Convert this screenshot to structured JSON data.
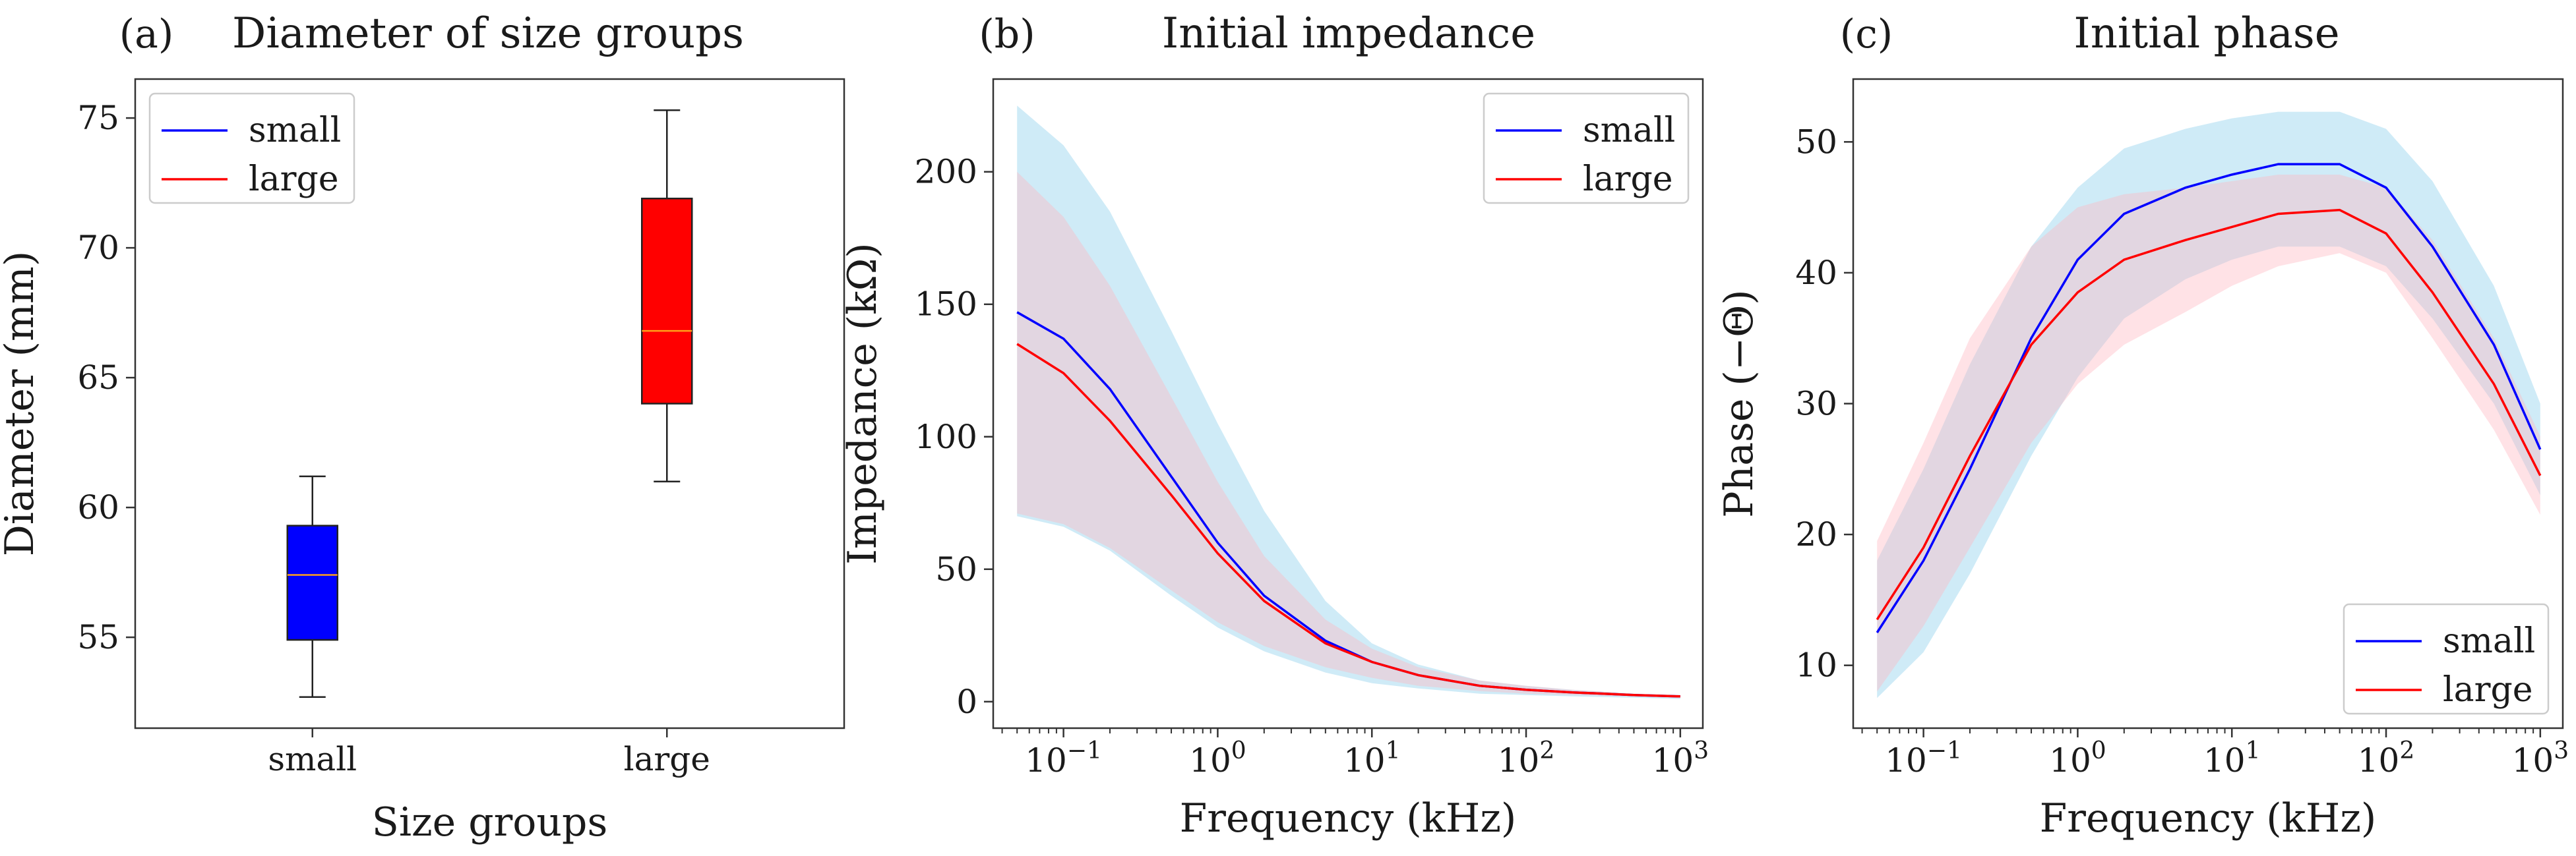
{
  "chart_data": [
    {
      "type": "box",
      "panel_label": "(a)",
      "title": "Diameter of size groups",
      "xlabel": "Size groups",
      "ylabel": "Diameter (mm)",
      "ylim": [
        51.5,
        76.5
      ],
      "yticks": [
        55,
        60,
        65,
        70,
        75
      ],
      "categories": [
        "small",
        "large"
      ],
      "boxes": [
        {
          "name": "small",
          "color": "#0000ff",
          "whisker_low": 52.7,
          "q1": 54.9,
          "median": 57.4,
          "q3": 59.3,
          "whisker_high": 61.2
        },
        {
          "name": "large",
          "color": "#ff0000",
          "whisker_low": 61.0,
          "q1": 64.0,
          "median": 66.8,
          "q3": 71.9,
          "whisker_high": 75.3
        }
      ],
      "legend": {
        "position": "top-left",
        "entries": [
          {
            "label": "small",
            "color": "#0000ff"
          },
          {
            "label": "large",
            "color": "#ff0000"
          }
        ]
      }
    },
    {
      "type": "line",
      "panel_label": "(b)",
      "title": "Initial impedance",
      "xlabel": "Frequency (kHz)",
      "ylabel": "Impedance (kΩ)",
      "xscale": "log",
      "xlim": [
        0.035,
        1400
      ],
      "ylim": [
        -10,
        235
      ],
      "yticks": [
        0,
        50,
        100,
        150,
        200
      ],
      "xticks": [
        {
          "value": 0.1,
          "base": "10",
          "exp": "−1"
        },
        {
          "value": 1,
          "base": "10",
          "exp": "0"
        },
        {
          "value": 10,
          "base": "10",
          "exp": "1"
        },
        {
          "value": 100,
          "base": "10",
          "exp": "2"
        },
        {
          "value": 1000,
          "base": "10",
          "exp": "3"
        }
      ],
      "x": [
        0.05,
        0.1,
        0.2,
        0.5,
        1,
        2,
        5,
        10,
        20,
        50,
        100,
        200,
        500,
        1000
      ],
      "series": [
        {
          "name": "small",
          "color": "#0000ff",
          "band_color": "#87ceeb",
          "values": [
            147,
            137,
            118,
            85,
            60,
            40,
            23,
            15,
            10,
            6,
            4.5,
            3.5,
            2.5,
            2
          ],
          "lower": [
            70,
            66,
            57,
            40,
            28,
            19,
            11,
            7,
            5,
            3,
            2.5,
            2,
            1.5,
            1
          ],
          "upper": [
            225,
            210,
            185,
            140,
            105,
            72,
            38,
            22,
            14,
            8,
            6,
            4.5,
            3,
            2.5
          ]
        },
        {
          "name": "large",
          "color": "#ff0000",
          "band_color": "#ffb6c1",
          "values": [
            135,
            124,
            106,
            78,
            56,
            38,
            22,
            15,
            10,
            6,
            4.5,
            3.5,
            2.5,
            2
          ],
          "lower": [
            71,
            67,
            58,
            42,
            30,
            21,
            13,
            9,
            6,
            4,
            3,
            2.5,
            2,
            1.5
          ],
          "upper": [
            200,
            183,
            157,
            115,
            83,
            55,
            31,
            20,
            13,
            8,
            6,
            4.5,
            3,
            2.5
          ]
        }
      ],
      "legend": {
        "position": "top-right",
        "entries": [
          {
            "label": "small",
            "color": "#0000ff"
          },
          {
            "label": "large",
            "color": "#ff0000"
          }
        ]
      }
    },
    {
      "type": "line",
      "panel_label": "(c)",
      "title": "Initial phase",
      "xlabel": "Frequency (kHz)",
      "ylabel": "Phase (−Θ)",
      "xscale": "log",
      "xlim": [
        0.035,
        1400
      ],
      "ylim": [
        5.2,
        54.8
      ],
      "yticks": [
        10,
        20,
        30,
        40,
        50
      ],
      "xticks": [
        {
          "value": 0.1,
          "base": "10",
          "exp": "−1"
        },
        {
          "value": 1,
          "base": "10",
          "exp": "0"
        },
        {
          "value": 10,
          "base": "10",
          "exp": "1"
        },
        {
          "value": 100,
          "base": "10",
          "exp": "2"
        },
        {
          "value": 1000,
          "base": "10",
          "exp": "3"
        }
      ],
      "x": [
        0.05,
        0.1,
        0.2,
        0.5,
        1,
        2,
        5,
        10,
        20,
        50,
        100,
        200,
        500,
        1000
      ],
      "series": [
        {
          "name": "small",
          "color": "#0000ff",
          "band_color": "#87ceeb",
          "values": [
            12.5,
            18,
            25,
            35,
            41,
            44.5,
            46.5,
            47.5,
            48.3,
            48.3,
            46.5,
            42,
            34.5,
            26.5
          ],
          "lower": [
            7.5,
            11,
            17,
            26,
            32,
            36.5,
            39.5,
            41,
            42,
            42,
            40.5,
            36.5,
            30,
            23
          ],
          "upper": [
            18,
            25,
            33,
            42,
            46.5,
            49.5,
            51,
            51.8,
            52.3,
            52.3,
            51,
            47,
            39,
            30
          ]
        },
        {
          "name": "large",
          "color": "#ff0000",
          "band_color": "#ffb6c1",
          "values": [
            13.5,
            19,
            26,
            34.5,
            38.5,
            41,
            42.5,
            43.5,
            44.5,
            44.8,
            43,
            38.5,
            31.5,
            24.5
          ],
          "lower": [
            8,
            13,
            19,
            27,
            31.5,
            34.5,
            37,
            39,
            40.5,
            41.5,
            40,
            35,
            28,
            21.5
          ],
          "upper": [
            19.5,
            27,
            35,
            42,
            45,
            46,
            46.5,
            47,
            47.5,
            47.5,
            46.5,
            42.5,
            35,
            27.5
          ]
        }
      ],
      "legend": {
        "position": "bottom-right",
        "entries": [
          {
            "label": "small",
            "color": "#0000ff"
          },
          {
            "label": "large",
            "color": "#ff0000"
          }
        ]
      }
    }
  ]
}
